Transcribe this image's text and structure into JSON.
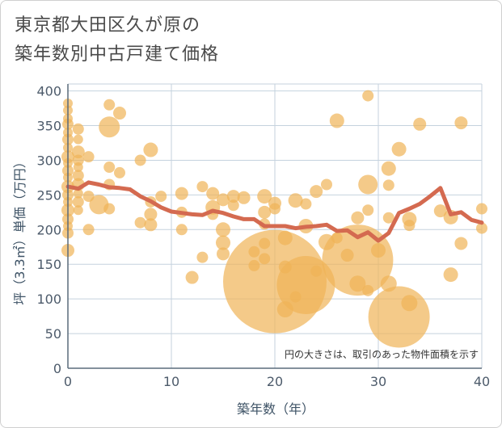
{
  "header": {
    "title": "東京都大田区久が原の\n築年数別中古戸建て価格"
  },
  "chart_data": {
    "type": "scatter",
    "title": "東京都大田区久が原の築年数別中古戸建て価格",
    "xlabel": "築年数（年）",
    "ylabel": "坪（3.3㎡）単価（万円）",
    "xlim": [
      0,
      40
    ],
    "ylim": [
      0,
      410
    ],
    "x_ticks": [
      "0",
      "10",
      "20",
      "30",
      "40"
    ],
    "y_ticks": [
      "0",
      "50",
      "100",
      "150",
      "200",
      "250",
      "300",
      "350",
      "400"
    ],
    "grid": true,
    "note": "円の大きさは、取引のあった物件面積を示す",
    "colors": {
      "bubble": "#f0b457",
      "line": "#d46a50",
      "grid": "#c5d2de",
      "axis": "#5a6b7b"
    },
    "bubbles": [
      {
        "x": 0,
        "y": 382,
        "s": 6
      },
      {
        "x": 0,
        "y": 372,
        "s": 6
      },
      {
        "x": 0,
        "y": 360,
        "s": 6
      },
      {
        "x": 0,
        "y": 352,
        "s": 7
      },
      {
        "x": 0,
        "y": 340,
        "s": 6
      },
      {
        "x": 0,
        "y": 330,
        "s": 7
      },
      {
        "x": 0,
        "y": 318,
        "s": 6
      },
      {
        "x": 0,
        "y": 305,
        "s": 8
      },
      {
        "x": 0,
        "y": 296,
        "s": 6
      },
      {
        "x": 0,
        "y": 285,
        "s": 7
      },
      {
        "x": 0,
        "y": 275,
        "s": 6
      },
      {
        "x": 0,
        "y": 262,
        "s": 8
      },
      {
        "x": 0,
        "y": 250,
        "s": 7
      },
      {
        "x": 0,
        "y": 240,
        "s": 6
      },
      {
        "x": 0,
        "y": 228,
        "s": 8
      },
      {
        "x": 0,
        "y": 215,
        "s": 7
      },
      {
        "x": 0,
        "y": 205,
        "s": 6
      },
      {
        "x": 0,
        "y": 195,
        "s": 7
      },
      {
        "x": 0,
        "y": 170,
        "s": 8
      },
      {
        "x": 1,
        "y": 345,
        "s": 7
      },
      {
        "x": 1,
        "y": 330,
        "s": 6
      },
      {
        "x": 1,
        "y": 312,
        "s": 8
      },
      {
        "x": 1,
        "y": 300,
        "s": 7
      },
      {
        "x": 1,
        "y": 290,
        "s": 6
      },
      {
        "x": 1,
        "y": 278,
        "s": 7
      },
      {
        "x": 1,
        "y": 265,
        "s": 8
      },
      {
        "x": 1,
        "y": 252,
        "s": 6
      },
      {
        "x": 1,
        "y": 240,
        "s": 7
      },
      {
        "x": 1,
        "y": 228,
        "s": 6
      },
      {
        "x": 2,
        "y": 305,
        "s": 7
      },
      {
        "x": 2,
        "y": 248,
        "s": 7
      },
      {
        "x": 2,
        "y": 200,
        "s": 7
      },
      {
        "x": 4,
        "y": 380,
        "s": 7
      },
      {
        "x": 4,
        "y": 348,
        "s": 13
      },
      {
        "x": 4,
        "y": 290,
        "s": 7
      },
      {
        "x": 5,
        "y": 368,
        "s": 8
      },
      {
        "x": 5,
        "y": 282,
        "s": 7
      },
      {
        "x": 3,
        "y": 236,
        "s": 12
      },
      {
        "x": 4,
        "y": 230,
        "s": 7
      },
      {
        "x": 4,
        "y": 265,
        "s": 7
      },
      {
        "x": 7,
        "y": 300,
        "s": 7
      },
      {
        "x": 8,
        "y": 315,
        "s": 9
      },
      {
        "x": 8,
        "y": 240,
        "s": 7
      },
      {
        "x": 8,
        "y": 222,
        "s": 8
      },
      {
        "x": 8,
        "y": 207,
        "s": 8
      },
      {
        "x": 7,
        "y": 210,
        "s": 7
      },
      {
        "x": 9,
        "y": 248,
        "s": 7
      },
      {
        "x": 11,
        "y": 252,
        "s": 8
      },
      {
        "x": 11,
        "y": 225,
        "s": 7
      },
      {
        "x": 11,
        "y": 200,
        "s": 7
      },
      {
        "x": 12,
        "y": 131,
        "s": 8
      },
      {
        "x": 13,
        "y": 262,
        "s": 7
      },
      {
        "x": 13,
        "y": 160,
        "s": 7
      },
      {
        "x": 14,
        "y": 252,
        "s": 8
      },
      {
        "x": 14,
        "y": 232,
        "s": 9
      },
      {
        "x": 14,
        "y": 222,
        "s": 7
      },
      {
        "x": 15,
        "y": 243,
        "s": 8
      },
      {
        "x": 15,
        "y": 200,
        "s": 9
      },
      {
        "x": 15,
        "y": 181,
        "s": 9
      },
      {
        "x": 15,
        "y": 165,
        "s": 8
      },
      {
        "x": 16,
        "y": 248,
        "s": 8
      },
      {
        "x": 16,
        "y": 235,
        "s": 7
      },
      {
        "x": 17,
        "y": 246,
        "s": 8
      },
      {
        "x": 19,
        "y": 248,
        "s": 9
      },
      {
        "x": 19,
        "y": 225,
        "s": 8
      },
      {
        "x": 19,
        "y": 208,
        "s": 7
      },
      {
        "x": 18,
        "y": 168,
        "s": 7
      },
      {
        "x": 18,
        "y": 148,
        "s": 7
      },
      {
        "x": 19,
        "y": 180,
        "s": 7
      },
      {
        "x": 19,
        "y": 158,
        "s": 7
      },
      {
        "x": 20,
        "y": 125,
        "s": 64
      },
      {
        "x": 20,
        "y": 238,
        "s": 8
      },
      {
        "x": 20,
        "y": 230,
        "s": 7
      },
      {
        "x": 21,
        "y": 188,
        "s": 9
      },
      {
        "x": 21,
        "y": 146,
        "s": 8
      },
      {
        "x": 21,
        "y": 85,
        "s": 10
      },
      {
        "x": 22,
        "y": 242,
        "s": 9
      },
      {
        "x": 22,
        "y": 103,
        "s": 7
      },
      {
        "x": 23,
        "y": 120,
        "s": 36
      },
      {
        "x": 23,
        "y": 205,
        "s": 9
      },
      {
        "x": 23,
        "y": 237,
        "s": 7
      },
      {
        "x": 24,
        "y": 255,
        "s": 8
      },
      {
        "x": 24,
        "y": 140,
        "s": 7
      },
      {
        "x": 25,
        "y": 265,
        "s": 7
      },
      {
        "x": 25,
        "y": 182,
        "s": 10
      },
      {
        "x": 26,
        "y": 357,
        "s": 9
      },
      {
        "x": 26,
        "y": 188,
        "s": 7
      },
      {
        "x": 27,
        "y": 163,
        "s": 8
      },
      {
        "x": 28,
        "y": 156,
        "s": 44
      },
      {
        "x": 28,
        "y": 217,
        "s": 8
      },
      {
        "x": 28,
        "y": 122,
        "s": 10
      },
      {
        "x": 29,
        "y": 393,
        "s": 7
      },
      {
        "x": 29,
        "y": 265,
        "s": 12
      },
      {
        "x": 29,
        "y": 228,
        "s": 7
      },
      {
        "x": 29,
        "y": 112,
        "s": 7
      },
      {
        "x": 30,
        "y": 170,
        "s": 9
      },
      {
        "x": 31,
        "y": 288,
        "s": 9
      },
      {
        "x": 31,
        "y": 264,
        "s": 7
      },
      {
        "x": 31,
        "y": 217,
        "s": 7
      },
      {
        "x": 31,
        "y": 122,
        "s": 10
      },
      {
        "x": 32,
        "y": 74,
        "s": 38
      },
      {
        "x": 32,
        "y": 316,
        "s": 9
      },
      {
        "x": 33,
        "y": 215,
        "s": 9
      },
      {
        "x": 33,
        "y": 206,
        "s": 7
      },
      {
        "x": 33,
        "y": 94,
        "s": 10
      },
      {
        "x": 34,
        "y": 352,
        "s": 8
      },
      {
        "x": 36,
        "y": 227,
        "s": 8
      },
      {
        "x": 37,
        "y": 218,
        "s": 9
      },
      {
        "x": 37,
        "y": 135,
        "s": 9
      },
      {
        "x": 38,
        "y": 354,
        "s": 8
      },
      {
        "x": 38,
        "y": 180,
        "s": 8
      },
      {
        "x": 40,
        "y": 230,
        "s": 7
      },
      {
        "x": 40,
        "y": 202,
        "s": 7
      }
    ],
    "trend_line": {
      "x": [
        0,
        1,
        2,
        3,
        4,
        5,
        6,
        7,
        8,
        9,
        10,
        11,
        12,
        13,
        14,
        15,
        16,
        17,
        18,
        19,
        20,
        21,
        22,
        23,
        24,
        25,
        26,
        27,
        28,
        29,
        30,
        31,
        32,
        33,
        34,
        35,
        36,
        37,
        38,
        39,
        40
      ],
      "y": [
        262,
        259,
        268,
        265,
        261,
        260,
        258,
        248,
        241,
        232,
        226,
        224,
        222,
        221,
        227,
        224,
        219,
        215,
        215,
        205,
        205,
        205,
        202,
        204,
        205,
        207,
        198,
        199,
        189,
        196,
        184,
        195,
        224,
        230,
        237,
        248,
        260,
        222,
        225,
        214,
        210
      ]
    }
  }
}
